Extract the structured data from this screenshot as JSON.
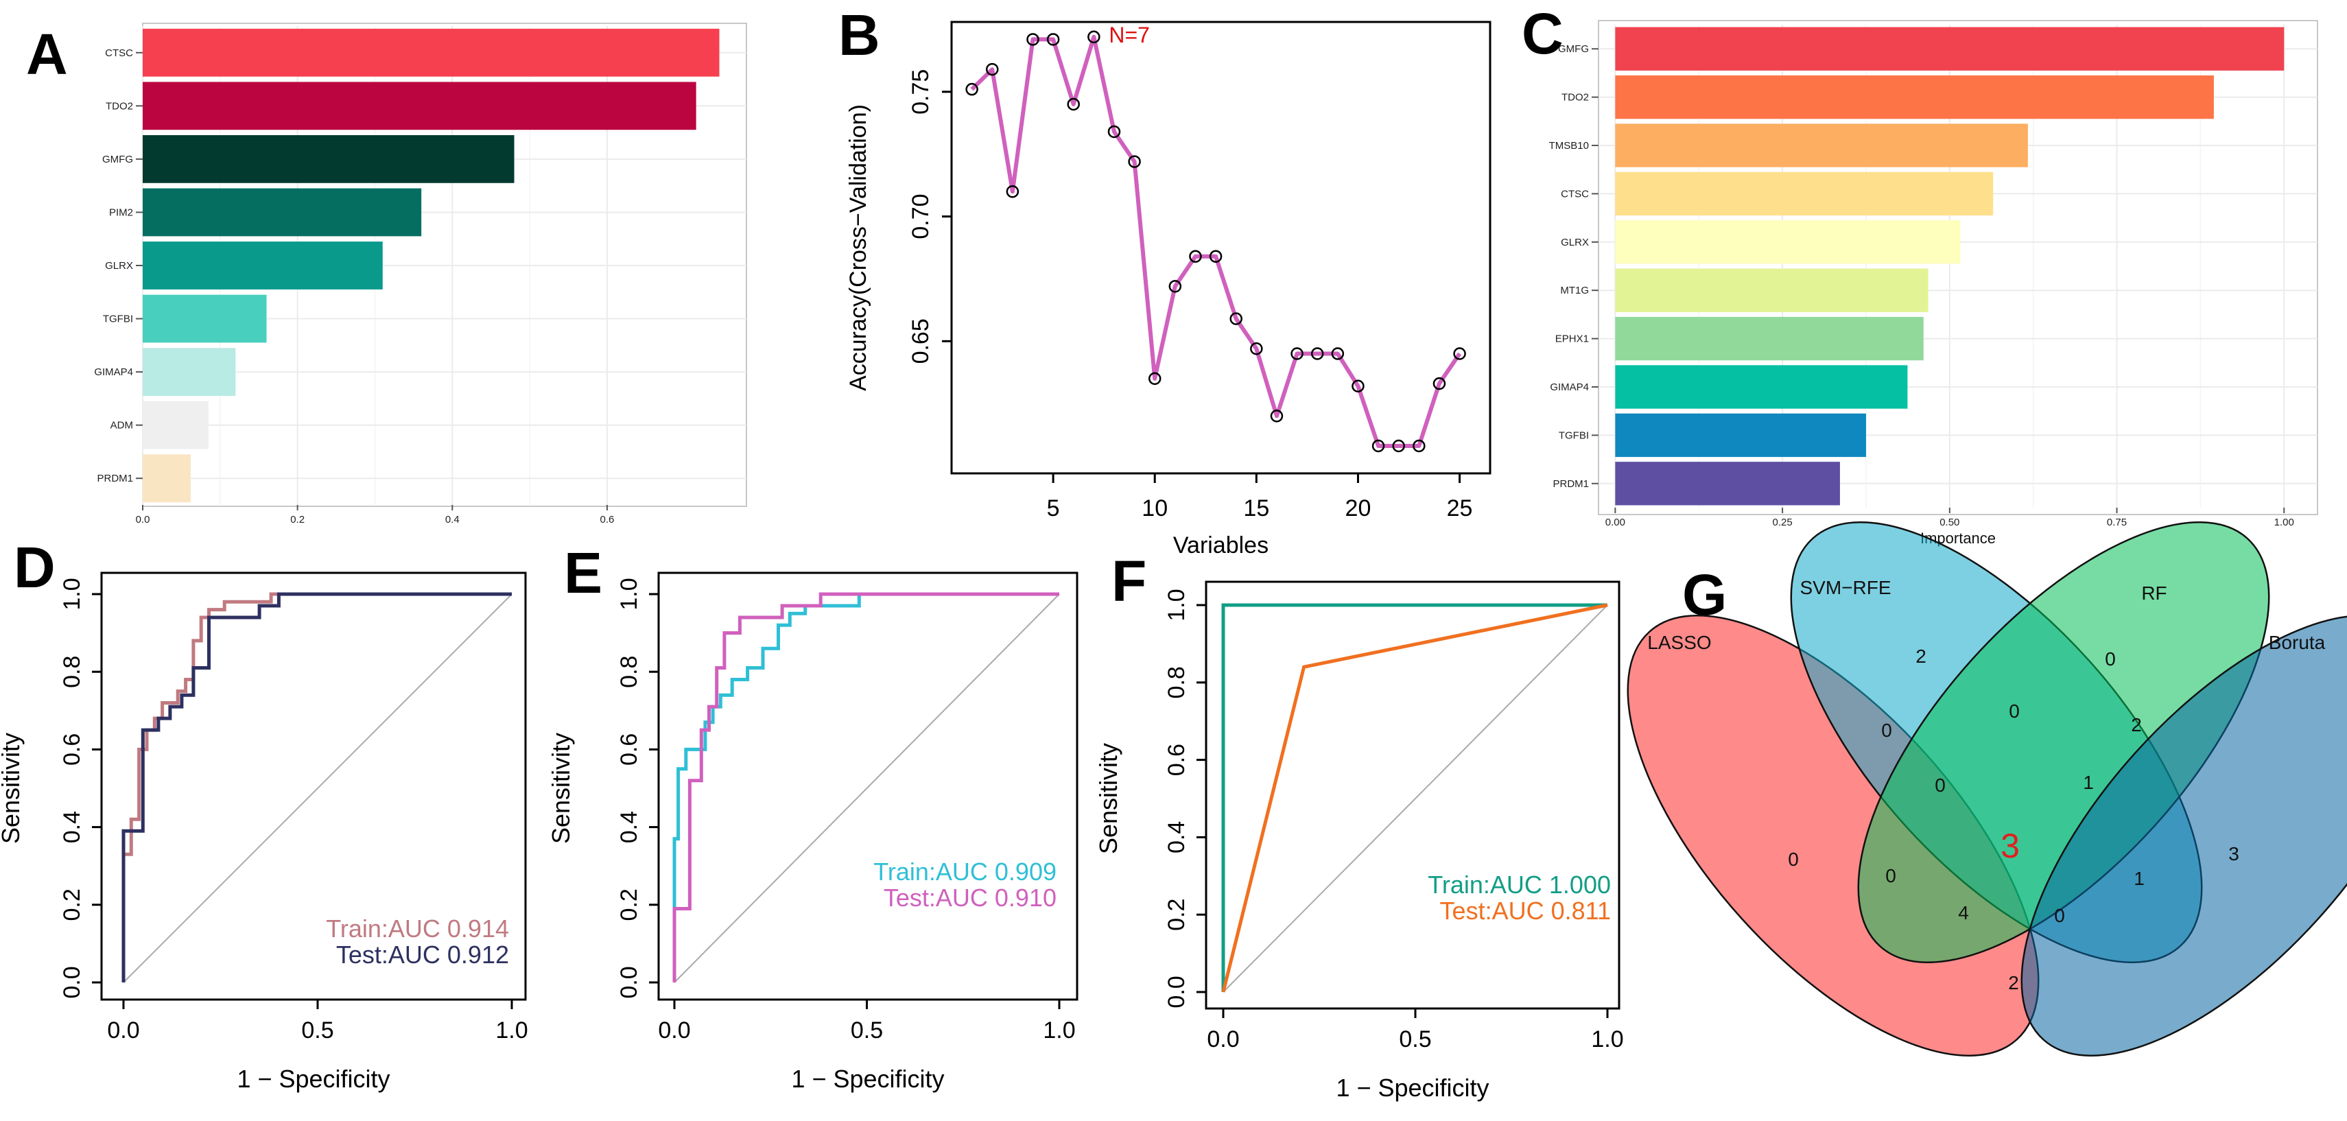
{
  "chart_data": [
    {
      "id": "A",
      "panel_label": "A",
      "type": "bar",
      "orientation": "horizontal",
      "categories": [
        "CTSC",
        "TDO2",
        "GMFG",
        "PIM2",
        "GLRX",
        "TGFBI",
        "GIMAP4",
        "ADM",
        "PRDM1"
      ],
      "values": [
        0.745,
        0.715,
        0.48,
        0.36,
        0.31,
        0.16,
        0.12,
        0.085,
        0.062
      ],
      "colors": [
        "#f7404f",
        "#bb0540",
        "#023a2f",
        "#066e61",
        "#0a9a8c",
        "#48cfbd",
        "#b8ebe4",
        "#efefef",
        "#fae5c3"
      ],
      "xlim": [
        0,
        0.78
      ],
      "xticks": [
        0.0,
        0.2,
        0.4,
        0.6
      ],
      "xtick_labels": [
        "0.0",
        "0.2",
        "0.4",
        "0.6"
      ],
      "grid": true
    },
    {
      "id": "B",
      "panel_label": "B",
      "type": "line",
      "x": [
        1,
        2,
        3,
        4,
        5,
        6,
        7,
        8,
        9,
        10,
        11,
        12,
        13,
        14,
        15,
        16,
        17,
        18,
        19,
        20,
        21,
        22,
        23,
        24,
        25
      ],
      "y": [
        0.751,
        0.759,
        0.71,
        0.771,
        0.771,
        0.745,
        0.772,
        0.734,
        0.722,
        0.635,
        0.672,
        0.684,
        0.684,
        0.659,
        0.647,
        0.62,
        0.645,
        0.645,
        0.645,
        0.632,
        0.608,
        0.608,
        0.608,
        0.633,
        0.645
      ],
      "color": "#d060bd",
      "xlabel": "Variables",
      "ylabel": "Accuracy(Cross−Validation)",
      "xlim": [
        0,
        26.5
      ],
      "ylim": [
        0.597,
        0.778
      ],
      "xticks": [
        5,
        10,
        15,
        20,
        25
      ],
      "yticks": [
        0.65,
        0.7,
        0.75
      ],
      "ytick_labels": [
        "0.65",
        "0.70",
        "0.75"
      ],
      "annotation": {
        "text": "N=7",
        "x": 7,
        "y": 0.772,
        "color": "#e01010"
      }
    },
    {
      "id": "C",
      "panel_label": "C",
      "type": "bar",
      "orientation": "horizontal",
      "categories": [
        "GMFG",
        "TDO2",
        "TMSB10",
        "CTSC",
        "GLRX",
        "MT1G",
        "EPHX1",
        "GIMAP4",
        "TGFBI",
        "PRDM1"
      ],
      "values": [
        1.0,
        0.895,
        0.617,
        0.565,
        0.516,
        0.468,
        0.461,
        0.437,
        0.375,
        0.336
      ],
      "colors": [
        "#f1434f",
        "#fd7446",
        "#fdae61",
        "#fedf8b",
        "#fefebd",
        "#e2f396",
        "#91d89b",
        "#06c0a3",
        "#0f88c0",
        "#5e4fa2"
      ],
      "xlabel": "Importance",
      "xlim": [
        -0.025,
        1.05
      ],
      "xticks": [
        0.0,
        0.25,
        0.5,
        0.75,
        1.0
      ],
      "xtick_labels": [
        "0.00",
        "0.25",
        "0.50",
        "0.75",
        "1.00"
      ],
      "grid": true
    },
    {
      "id": "D",
      "panel_label": "D",
      "type": "line",
      "xlabel": "1 − Specificity",
      "ylabel": "Sensitivity",
      "xlim": [
        0,
        1
      ],
      "ylim": [
        0,
        1
      ],
      "xticks": [
        0.0,
        0.5,
        1.0
      ],
      "xtick_labels": [
        "0.0",
        "0.5",
        "1.0"
      ],
      "yticks": [
        0.0,
        0.2,
        0.4,
        0.6,
        0.8,
        1.0
      ],
      "ytick_labels": [
        "0.0",
        "0.2",
        "0.4",
        "0.6",
        "0.8",
        "1.0"
      ],
      "series": [
        {
          "name": "Train",
          "color": "#c07a80",
          "x": [
            0,
            0,
            0.02,
            0.02,
            0.04,
            0.04,
            0.06,
            0.06,
            0.08,
            0.08,
            0.1,
            0.1,
            0.12,
            0.12,
            0.14,
            0.14,
            0.16,
            0.16,
            0.18,
            0.18,
            0.2,
            0.2,
            0.22,
            0.22,
            0.26,
            0.26,
            0.38,
            0.38,
            1.0
          ],
          "y": [
            0,
            0.33,
            0.33,
            0.42,
            0.42,
            0.6,
            0.6,
            0.65,
            0.65,
            0.68,
            0.68,
            0.72,
            0.72,
            0.72,
            0.72,
            0.75,
            0.75,
            0.78,
            0.78,
            0.88,
            0.88,
            0.94,
            0.94,
            0.96,
            0.96,
            0.98,
            0.98,
            1.0,
            1.0
          ]
        },
        {
          "name": "Test",
          "color": "#2d3060",
          "x": [
            0,
            0,
            0.05,
            0.05,
            0.09,
            0.09,
            0.12,
            0.12,
            0.15,
            0.15,
            0.18,
            0.18,
            0.22,
            0.22,
            0.35,
            0.35,
            0.4,
            0.4,
            1.0
          ],
          "y": [
            0,
            0.39,
            0.39,
            0.65,
            0.65,
            0.68,
            0.68,
            0.71,
            0.71,
            0.74,
            0.74,
            0.81,
            0.81,
            0.94,
            0.94,
            0.97,
            0.97,
            1.0,
            1.0
          ]
        }
      ],
      "legend": [
        {
          "text": "Train:AUC 0.914",
          "color": "#c07a80"
        },
        {
          "text": "Test:AUC 0.912",
          "color": "#2d3060"
        }
      ]
    },
    {
      "id": "E",
      "panel_label": "E",
      "type": "line",
      "xlabel": "1 − Specificity",
      "ylabel": "Sensitivity",
      "xlim": [
        0,
        1
      ],
      "ylim": [
        0,
        1
      ],
      "xticks": [
        0.0,
        0.5,
        1.0
      ],
      "xtick_labels": [
        "0.0",
        "0.5",
        "1.0"
      ],
      "yticks": [
        0.0,
        0.2,
        0.4,
        0.6,
        0.8,
        1.0
      ],
      "ytick_labels": [
        "0.0",
        "0.2",
        "0.4",
        "0.6",
        "0.8",
        "1.0"
      ],
      "series": [
        {
          "name": "Train",
          "color": "#2fbfd6",
          "x": [
            0,
            0,
            0.01,
            0.01,
            0.03,
            0.03,
            0.05,
            0.05,
            0.08,
            0.08,
            0.1,
            0.1,
            0.12,
            0.12,
            0.15,
            0.15,
            0.19,
            0.19,
            0.23,
            0.23,
            0.27,
            0.27,
            0.3,
            0.3,
            0.34,
            0.34,
            0.48,
            0.48,
            1.0
          ],
          "y": [
            0,
            0.37,
            0.37,
            0.55,
            0.55,
            0.6,
            0.6,
            0.6,
            0.6,
            0.67,
            0.67,
            0.71,
            0.71,
            0.74,
            0.74,
            0.78,
            0.78,
            0.81,
            0.81,
            0.86,
            0.86,
            0.92,
            0.92,
            0.95,
            0.95,
            0.97,
            0.97,
            1.0,
            1.0
          ]
        },
        {
          "name": "Test",
          "color": "#d060bd",
          "x": [
            0,
            0,
            0.04,
            0.04,
            0.07,
            0.07,
            0.09,
            0.09,
            0.11,
            0.11,
            0.13,
            0.13,
            0.17,
            0.17,
            0.28,
            0.28,
            0.38,
            0.38,
            0.48,
            0.48,
            1.0
          ],
          "y": [
            0,
            0.19,
            0.19,
            0.52,
            0.52,
            0.65,
            0.65,
            0.71,
            0.71,
            0.81,
            0.81,
            0.9,
            0.9,
            0.94,
            0.94,
            0.97,
            0.97,
            1.0,
            1.0,
            1.0,
            1.0
          ]
        }
      ],
      "legend": [
        {
          "text": "Train:AUC 0.909",
          "color": "#2fbfd6"
        },
        {
          "text": "Test:AUC 0.910",
          "color": "#d060bd"
        }
      ]
    },
    {
      "id": "F",
      "panel_label": "F",
      "type": "line",
      "xlabel": "1 − Specificity",
      "ylabel": "Sensitivity",
      "xlim": [
        0,
        1
      ],
      "ylim": [
        0,
        1
      ],
      "xticks": [
        0.0,
        0.5,
        1.0
      ],
      "xtick_labels": [
        "0.0",
        "0.5",
        "1.0"
      ],
      "yticks": [
        0.0,
        0.2,
        0.4,
        0.6,
        0.8,
        1.0
      ],
      "ytick_labels": [
        "0.0",
        "0.2",
        "0.4",
        "0.6",
        "0.8",
        "1.0"
      ],
      "series": [
        {
          "name": "Train",
          "color": "#119e86",
          "x": [
            0,
            0,
            1.0
          ],
          "y": [
            0,
            1.0,
            1.0
          ]
        },
        {
          "name": "Test",
          "color": "#f07020",
          "x": [
            0,
            0.21,
            1.0
          ],
          "y": [
            0,
            0.84,
            1.0
          ]
        }
      ],
      "legend": [
        {
          "text": "Train:AUC 1.000",
          "color": "#119e86"
        },
        {
          "text": "Test:AUC 0.811",
          "color": "#f07020"
        }
      ]
    }
  ],
  "venn": {
    "panel_label": "G",
    "sets": [
      {
        "name": "LASSO",
        "color": "#ff2a2a"
      },
      {
        "name": "SVM−RFE",
        "color": "#13a9c8"
      },
      {
        "name": "RF",
        "color": "#06c058"
      },
      {
        "name": "Boruta",
        "color": "#0a66a2"
      }
    ],
    "regions": [
      {
        "sets": "LASSO",
        "count": "0"
      },
      {
        "sets": "SVM-RFE",
        "count": "2"
      },
      {
        "sets": "RF",
        "count": "0"
      },
      {
        "sets": "Boruta",
        "count": "3"
      },
      {
        "sets": "LASSO&SVM-RFE",
        "count": "0"
      },
      {
        "sets": "SVM-RFE&RF",
        "count": "0"
      },
      {
        "sets": "RF&Boruta",
        "count": "2"
      },
      {
        "sets": "LASSO&SVM-RFE&RF",
        "count": "0"
      },
      {
        "sets": "SVM-RFE&RF&Boruta",
        "count": "1"
      },
      {
        "sets": "ALL",
        "count": "3"
      },
      {
        "sets": "LASSO&RF",
        "count": "0"
      },
      {
        "sets": "SVM-RFE&Boruta",
        "count": "1"
      },
      {
        "sets": "LASSO&RF&Boruta",
        "count": "4"
      },
      {
        "sets": "LASSO&SVM-RFE&Boruta",
        "count": "0"
      },
      {
        "sets": "LASSO&Boruta",
        "count": "2"
      }
    ],
    "center_color": "#e02020"
  }
}
